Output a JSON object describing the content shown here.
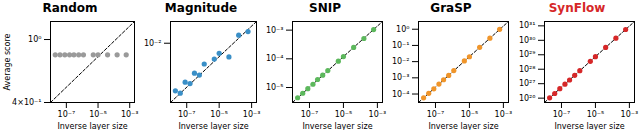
{
  "chart_data": [
    {
      "type": "scatter",
      "title": "Random",
      "x_label": "Inverse layer size",
      "y_label": "Average score",
      "log": true,
      "color": "#9a9a9a",
      "xlim": [
        1e-08,
        0.002
      ],
      "ylim": [
        0.4,
        1.3
      ],
      "xticks": [
        {
          "value": 1e-07,
          "label": "10⁻⁷"
        },
        {
          "value": 1e-05,
          "label": "10⁻⁵"
        },
        {
          "value": 0.001,
          "label": "10⁻³"
        }
      ],
      "yticks": [
        {
          "value": 0.4,
          "label": "4×10⁻¹"
        },
        {
          "value": 1,
          "label": "10⁰"
        }
      ],
      "x": [
        2e-08,
        4e-08,
        8e-08,
        1.6e-07,
        3e-07,
        6e-07,
        1.2e-06,
        5e-06,
        1e-05,
        4e-05,
        0.00016,
        0.0006
      ],
      "values": [
        0.8,
        0.8,
        0.8,
        0.8,
        0.8,
        0.8,
        0.8,
        0.8,
        0.8,
        0.8,
        0.8,
        0.8
      ]
    },
    {
      "type": "scatter",
      "title": "Magnitude",
      "x_label": "Inverse layer size",
      "log": true,
      "color": "#3a8fc7",
      "xlim": [
        1e-08,
        0.002
      ],
      "ylim": [
        0.0005,
        0.03
      ],
      "xticks": [
        {
          "value": 1e-07,
          "label": "10⁻⁷"
        },
        {
          "value": 1e-05,
          "label": "10⁻⁵"
        },
        {
          "value": 0.001,
          "label": "10⁻³"
        }
      ],
      "yticks": [
        {
          "value": 0.01,
          "label": "10⁻²"
        }
      ],
      "x": [
        2e-08,
        4e-08,
        8e-08,
        1.6e-07,
        3e-07,
        6e-07,
        1.2e-06,
        5e-06,
        1e-05,
        4e-05,
        0.00016,
        0.0006
      ],
      "values": [
        0.0009,
        0.0008,
        0.0014,
        0.0013,
        0.0022,
        0.002,
        0.0035,
        0.0045,
        0.006,
        0.005,
        0.015,
        0.018
      ]
    },
    {
      "type": "scatter",
      "title": "SNIP",
      "x_label": "Inverse layer size",
      "log": true,
      "color": "#5cb85c",
      "xlim": [
        1e-08,
        0.002
      ],
      "ylim": [
        3e-06,
        0.002
      ],
      "xticks": [
        {
          "value": 1e-07,
          "label": "10⁻⁷"
        },
        {
          "value": 1e-05,
          "label": "10⁻⁵"
        },
        {
          "value": 0.001,
          "label": "10⁻³"
        }
      ],
      "yticks": [
        {
          "value": 1e-05,
          "label": "10⁻⁵"
        },
        {
          "value": 0.0001,
          "label": "10⁻⁴"
        },
        {
          "value": 0.001,
          "label": "10⁻³"
        }
      ],
      "x": [
        2e-08,
        4e-08,
        8e-08,
        1.6e-07,
        3e-07,
        6e-07,
        1.2e-06,
        5e-06,
        1e-05,
        4e-05,
        0.00016,
        0.0006
      ],
      "values": [
        4.4e-06,
        6.3e-06,
        9.1e-06,
        1.3e-05,
        1.9e-05,
        2.7e-05,
        3.9e-05,
        8.3e-05,
        0.00012,
        0.00025,
        0.00051,
        0.00105
      ]
    },
    {
      "type": "scatter",
      "title": "GraSP",
      "x_label": "Inverse layer size",
      "log": true,
      "color": "#f0952a",
      "xlim": [
        1e-08,
        0.002
      ],
      "ylim": [
        3e-05,
        3
      ],
      "xticks": [
        {
          "value": 1e-07,
          "label": "10⁻⁷"
        },
        {
          "value": 1e-05,
          "label": "10⁻⁵"
        },
        {
          "value": 0.001,
          "label": "10⁻³"
        }
      ],
      "yticks": [
        {
          "value": 0.0001,
          "label": "10⁻⁴"
        },
        {
          "value": 0.001,
          "label": "10⁻³"
        },
        {
          "value": 0.01,
          "label": "10⁻²"
        },
        {
          "value": 0.1,
          "label": "10⁻¹"
        },
        {
          "value": 1,
          "label": "10⁰"
        }
      ],
      "x": [
        2e-08,
        4e-08,
        8e-08,
        1.6e-07,
        3e-07,
        6e-07,
        1.2e-06,
        5e-06,
        1e-05,
        4e-05,
        0.00016,
        0.0006
      ],
      "values": [
        5.8e-05,
        0.00011,
        0.00021,
        0.00041,
        0.00076,
        0.0014,
        0.0028,
        0.011,
        0.02,
        0.076,
        0.28,
        0.98
      ]
    },
    {
      "type": "scatter",
      "title": "SynFlow",
      "x_label": "Inverse layer size",
      "log": true,
      "color": "#d62728",
      "xlim": [
        1e-08,
        0.002
      ],
      "ylim": [
        5e+25,
        2e+31
      ],
      "xticks": [
        {
          "value": 1e-07,
          "label": "10⁻⁷"
        },
        {
          "value": 1e-05,
          "label": "10⁻⁵"
        },
        {
          "value": 0.001,
          "label": "10⁻³"
        }
      ],
      "yticks": [
        {
          "value": 1e+26,
          "label": "10²⁶"
        },
        {
          "value": 1e+27,
          "label": "10²⁷"
        },
        {
          "value": 1e+28,
          "label": "10²⁸"
        },
        {
          "value": 1e+29,
          "label": "10²⁹"
        },
        {
          "value": 1e+30,
          "label": "10³⁰"
        },
        {
          "value": 1e+31,
          "label": "10³¹"
        }
      ],
      "x": [
        2e-08,
        4e-08,
        8e-08,
        1.6e-07,
        3e-07,
        6e-07,
        1.2e-06,
        5e-06,
        1e-05,
        4e-05,
        0.00016,
        0.0006
      ],
      "values": [
        1.05e+26,
        2.1e+26,
        4.5e+26,
        9.3e+26,
        1.8e+27,
        3.8e+27,
        7.9e+27,
        3.5e+28,
        7.4e+28,
        3.2e+29,
        1.4e+30,
        5.6e+30
      ]
    }
  ]
}
